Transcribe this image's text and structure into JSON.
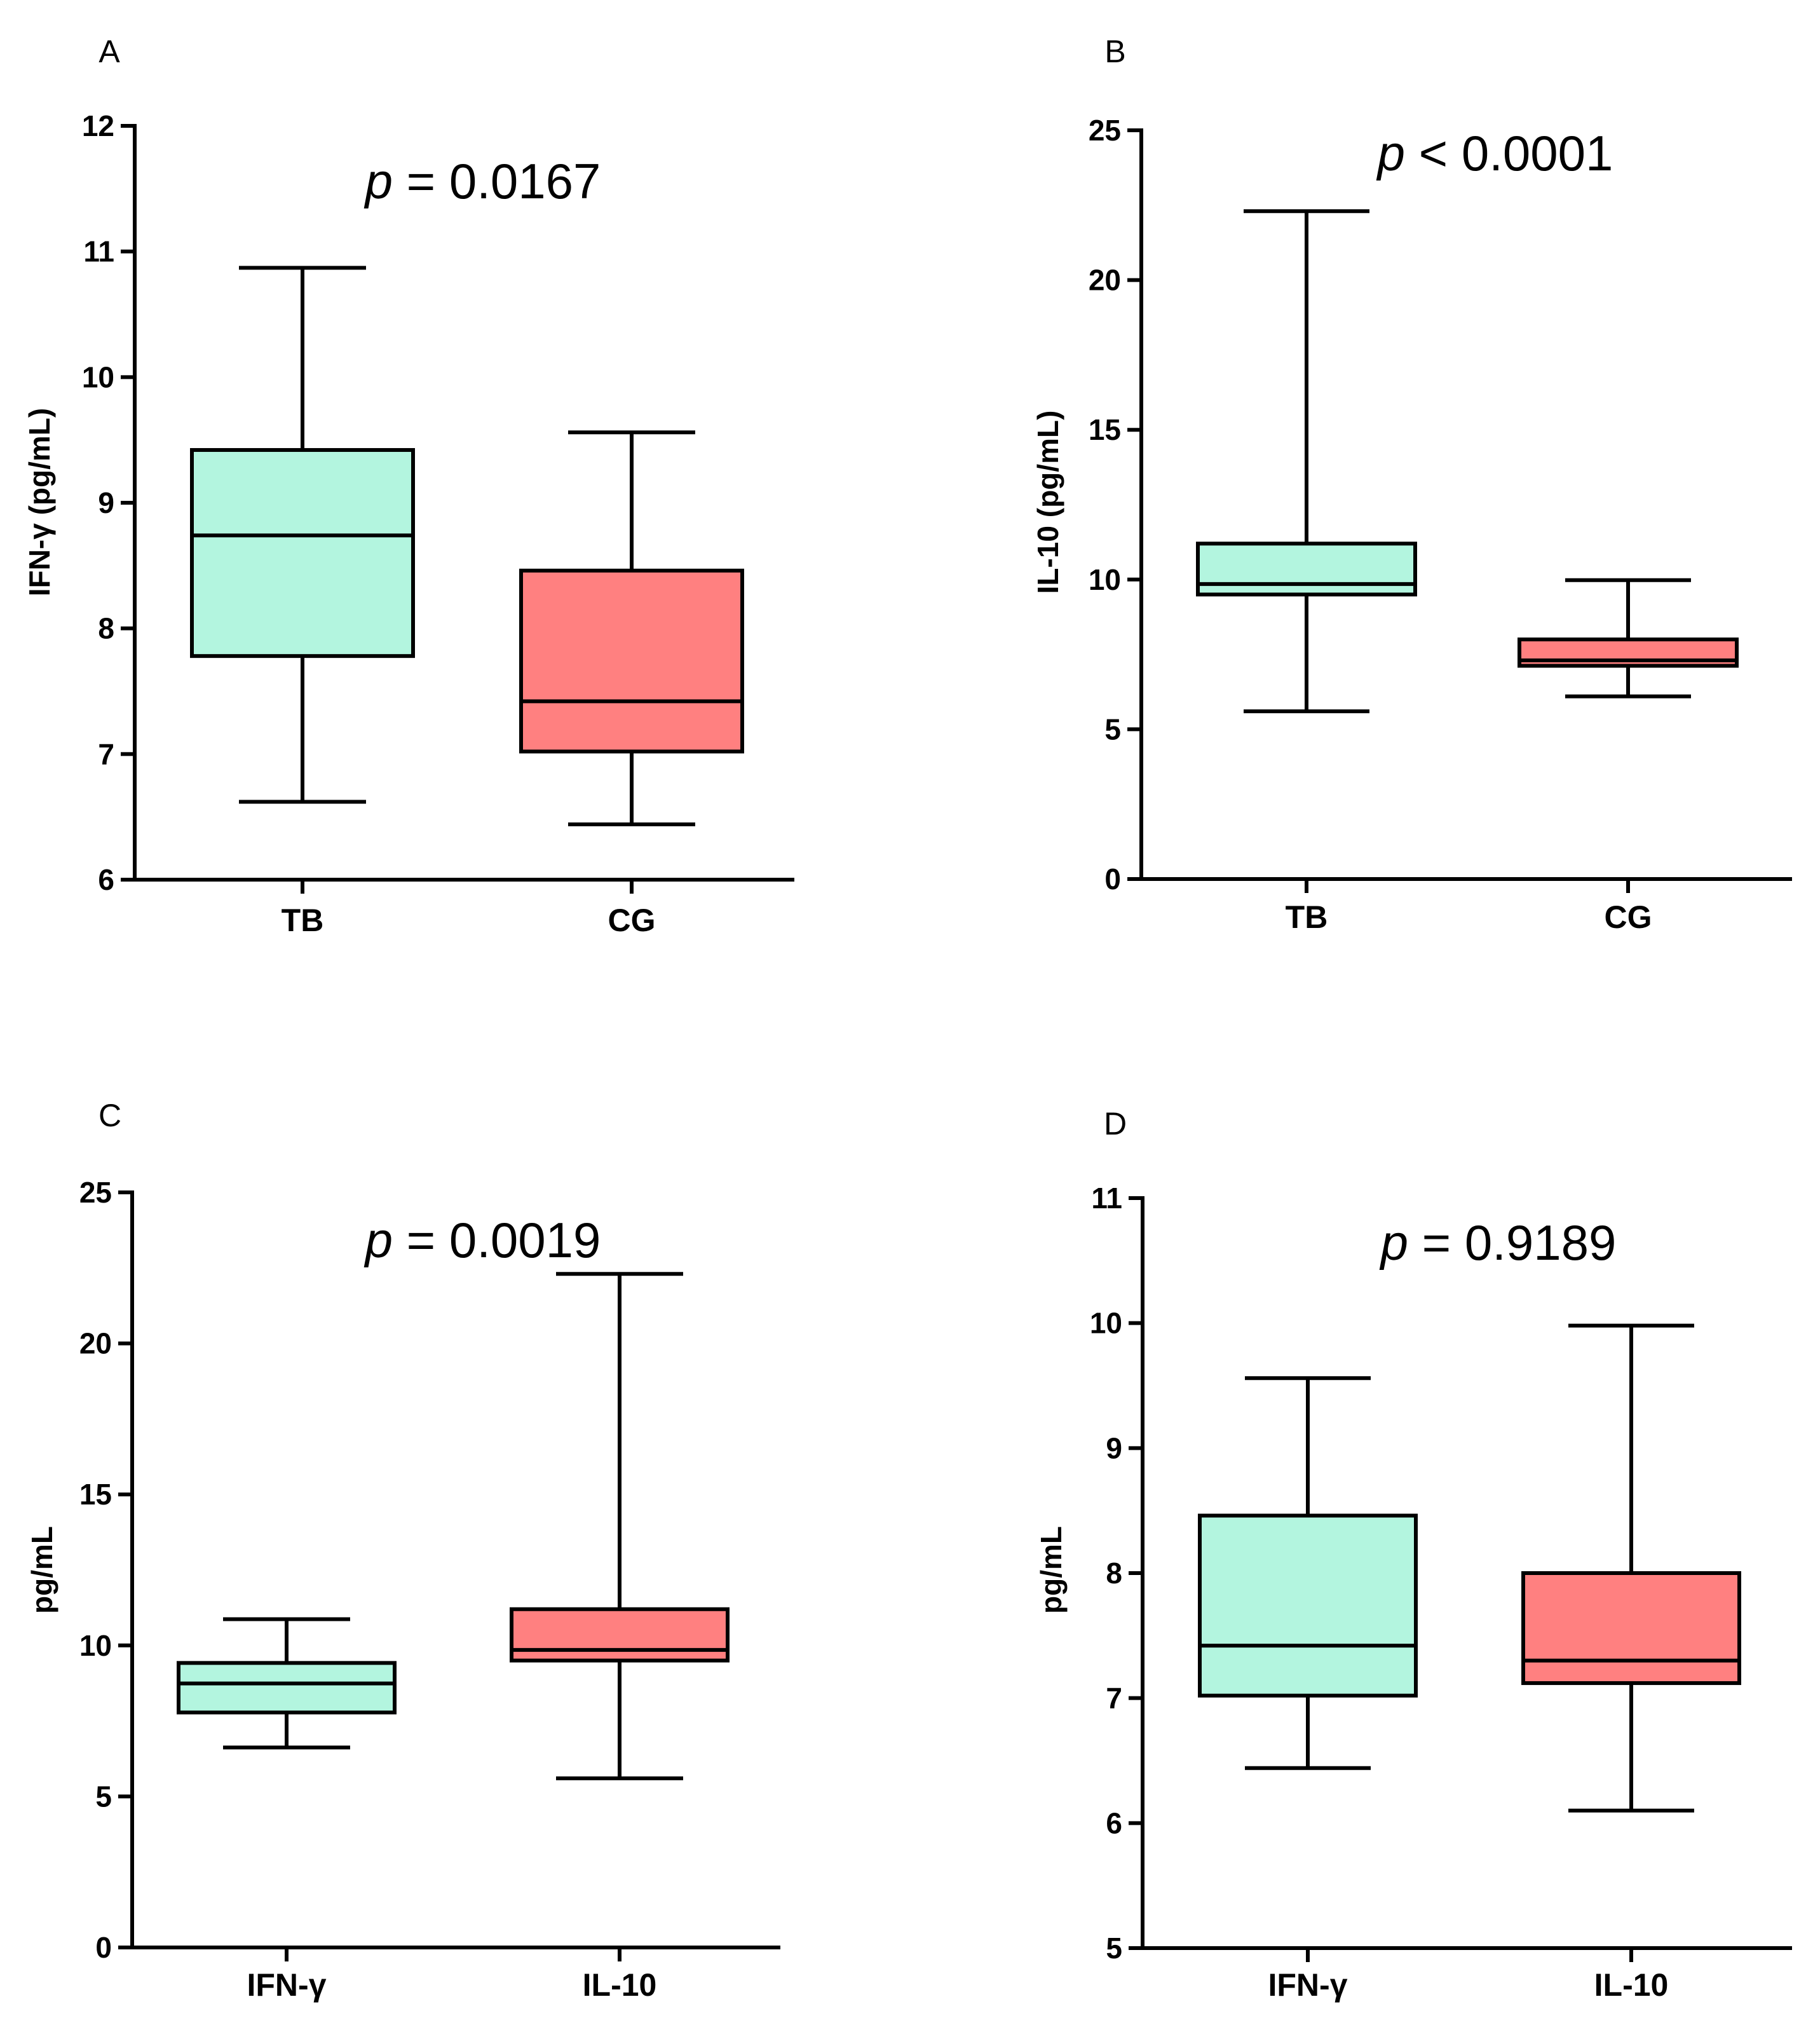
{
  "colors": {
    "box_1": "#b3f5df",
    "box_2": "#ff8080",
    "ink": "#000000"
  },
  "chart_data": [
    {
      "panel": "A",
      "type": "boxplot",
      "ylabel": "IFN-γ (pg/mL)",
      "ylim": [
        6,
        12
      ],
      "yticks": [
        6,
        7,
        8,
        9,
        10,
        11,
        12
      ],
      "p_prefix": "p",
      "p_text": " = 0.0167",
      "categories": [
        "TB",
        "CG"
      ],
      "boxes": [
        {
          "name": "TB",
          "min": 6.62,
          "q1": 7.78,
          "median": 8.74,
          "q3": 9.42,
          "max": 10.87
        },
        {
          "name": "CG",
          "min": 6.44,
          "q1": 7.02,
          "median": 7.42,
          "q3": 8.46,
          "max": 9.56
        }
      ]
    },
    {
      "panel": "B",
      "type": "boxplot",
      "ylabel": "IL-10 (pg/mL)",
      "ylim": [
        0,
        25
      ],
      "yticks": [
        0,
        5,
        10,
        15,
        20,
        25
      ],
      "p_prefix": "p",
      "p_text": " < 0.0001",
      "categories": [
        "TB",
        "CG"
      ],
      "boxes": [
        {
          "name": "TB",
          "min": 5.6,
          "q1": 9.5,
          "median": 9.85,
          "q3": 11.2,
          "max": 22.3
        },
        {
          "name": "CG",
          "min": 6.1,
          "q1": 7.12,
          "median": 7.3,
          "q3": 8.0,
          "max": 9.98
        }
      ]
    },
    {
      "panel": "C",
      "type": "boxplot",
      "ylabel": "pg/mL",
      "ylim": [
        0,
        25
      ],
      "yticks": [
        0,
        5,
        10,
        15,
        20,
        25
      ],
      "p_prefix": "p",
      "p_text": " = 0.0019",
      "categories": [
        "IFN-γ",
        "IL-10"
      ],
      "boxes": [
        {
          "name": "IFN-γ",
          "min": 6.62,
          "q1": 7.78,
          "median": 8.74,
          "q3": 9.42,
          "max": 10.87
        },
        {
          "name": "IL-10",
          "min": 5.6,
          "q1": 9.5,
          "median": 9.85,
          "q3": 11.2,
          "max": 22.3
        }
      ]
    },
    {
      "panel": "D",
      "type": "boxplot",
      "ylabel": "pg/mL",
      "ylim": [
        5,
        11
      ],
      "yticks": [
        5,
        6,
        7,
        8,
        9,
        10,
        11
      ],
      "p_prefix": "p",
      "p_text": " = 0.9189",
      "categories": [
        "IFN-γ",
        "IL-10"
      ],
      "boxes": [
        {
          "name": "IFN-γ",
          "min": 6.44,
          "q1": 7.02,
          "median": 7.42,
          "q3": 8.46,
          "max": 9.56
        },
        {
          "name": "IL-10",
          "min": 6.1,
          "q1": 7.12,
          "median": 7.3,
          "q3": 8.0,
          "max": 9.98
        }
      ]
    }
  ]
}
